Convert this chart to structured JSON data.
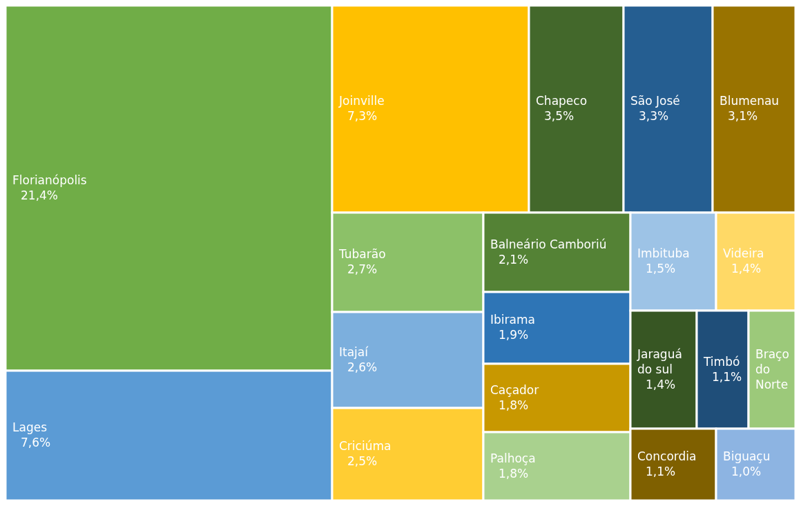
{
  "chart_data": {
    "type": "other",
    "categories": [
      "Florianópolis",
      "Lages",
      "Joinville",
      "Chapeco",
      "São José",
      "Blumenau",
      "Tubarão",
      "Itajaí",
      "Criciúma",
      "Balneário Camboriú",
      "Ibirama",
      "Caçador",
      "Palhoça",
      "Imbituba",
      "Videira",
      "Jaraguá do sul",
      "Timbó",
      "Braço do Norte",
      "Concordia",
      "Biguaçu"
    ],
    "values": [
      21.4,
      7.6,
      7.3,
      3.5,
      3.3,
      3.1,
      2.7,
      2.6,
      2.5,
      2.1,
      1.9,
      1.8,
      1.8,
      1.5,
      1.4,
      1.4,
      1.1,
      null,
      1.1,
      1.0
    ],
    "value_labels": [
      "21,4%",
      "7,6%",
      "7,3%",
      "3,5%",
      "3,3%",
      "3,1%",
      "2,7%",
      "2,6%",
      "2,5%",
      "2,1%",
      "1,9%",
      "1,8%",
      "1,8%",
      "1,5%",
      "1,4%",
      "1,4%",
      "1,1%",
      null,
      "1,1%",
      "1,0%"
    ],
    "colors": [
      "#70ad47",
      "#5b9bd5",
      "#ffc000",
      "#43682b",
      "#255e91",
      "#997300",
      "#8cc168",
      "#7cafdd",
      "#ffcd33",
      "#548235",
      "#2e75b6",
      "#c89800",
      "#a9d18e",
      "#9dc3e6",
      "#ffd966",
      "#375623",
      "#1f4e79",
      "#9cc97a",
      "#7f6000",
      "#8db4e2"
    ]
  }
}
